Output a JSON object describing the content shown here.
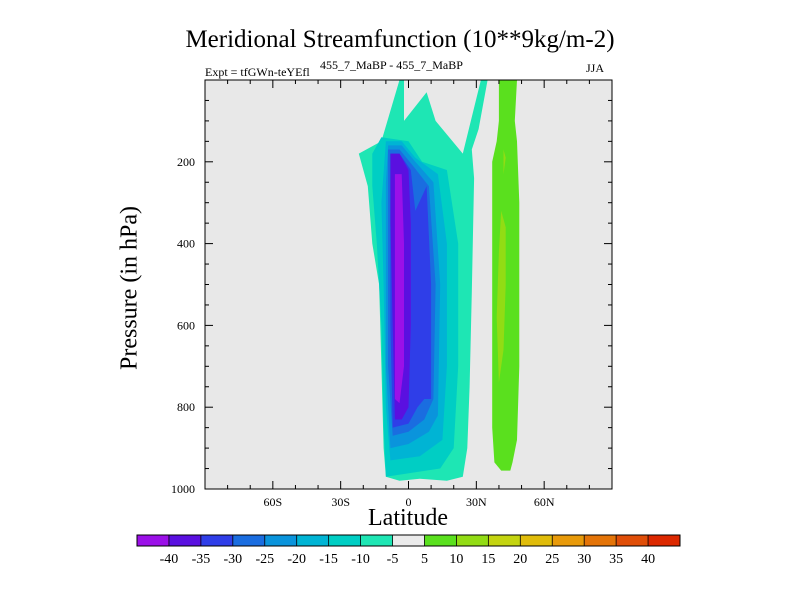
{
  "chart_data": {
    "type": "contour",
    "title": "Meridional Streamfunction (10**9kg/m-2)",
    "subtitle_left": "Expt = tfGWn-teYEfl",
    "subtitle_center": "455_7_MaBP - 455_7_MaBP",
    "subtitle_right": "JJA",
    "xlabel": "Latitude",
    "ylabel": "Pressure (in hPa)",
    "x_range": [
      -90,
      90
    ],
    "y_range": [
      1000,
      0
    ],
    "x_ticks": [
      {
        "value": -60,
        "label": "60S"
      },
      {
        "value": -30,
        "label": "30S"
      },
      {
        "value": 0,
        "label": "0"
      },
      {
        "value": 30,
        "label": "30N"
      },
      {
        "value": 60,
        "label": "60N"
      }
    ],
    "y_ticks": [
      {
        "value": 200,
        "label": "200"
      },
      {
        "value": 400,
        "label": "400"
      },
      {
        "value": 600,
        "label": "600"
      },
      {
        "value": 800,
        "label": "800"
      },
      {
        "value": 1000,
        "label": "1000"
      }
    ],
    "background_color": "#e8e8e8",
    "colorbar": {
      "labels": [
        "-40",
        "-35",
        "-30",
        "-25",
        "-20",
        "-15",
        "-10",
        "-5",
        "5",
        "10",
        "15",
        "20",
        "25",
        "30",
        "35",
        "40"
      ],
      "colors": [
        "#9b10e8",
        "#5a10e0",
        "#2f3ee8",
        "#1a6de0",
        "#0a94dc",
        "#00b4d4",
        "#00cec4",
        "#1ee6b4",
        "#ebebeb",
        "#5ae01e",
        "#92dc14",
        "#c4d410",
        "#e0bc0a",
        "#e89a0a",
        "#e47408",
        "#e04e08",
        "#dc2800"
      ]
    },
    "regions": [
      {
        "name": "lobe-minus-5",
        "level": -5,
        "color": "#1ee6b4",
        "points": [
          [
            -4,
            0
          ],
          [
            -2,
            0
          ],
          [
            -2,
            100
          ],
          [
            8,
            30
          ],
          [
            12,
            100
          ],
          [
            24,
            180
          ],
          [
            32,
            0
          ],
          [
            35,
            0
          ],
          [
            31,
            120
          ],
          [
            28,
            170
          ],
          [
            29,
            240
          ],
          [
            28,
            520
          ],
          [
            27,
            750
          ],
          [
            26,
            900
          ],
          [
            24,
            970
          ],
          [
            17,
            980
          ],
          [
            5,
            975
          ],
          [
            -4,
            980
          ],
          [
            -10,
            970
          ],
          [
            -11,
            900
          ],
          [
            -12,
            700
          ],
          [
            -13,
            500
          ],
          [
            -16,
            400
          ],
          [
            -18,
            260
          ],
          [
            -22,
            180
          ],
          [
            -12,
            150
          ]
        ]
      },
      {
        "name": "lobe-minus-10",
        "level": -10,
        "color": "#00cec4",
        "points": [
          [
            -12,
            140
          ],
          [
            0,
            150
          ],
          [
            6,
            200
          ],
          [
            17,
            220
          ],
          [
            22,
            400
          ],
          [
            22,
            700
          ],
          [
            20,
            900
          ],
          [
            14,
            950
          ],
          [
            2,
            960
          ],
          [
            -10,
            970
          ],
          [
            -11,
            850
          ],
          [
            -12,
            600
          ],
          [
            -14,
            400
          ],
          [
            -16,
            260
          ],
          [
            -16,
            180
          ]
        ]
      },
      {
        "name": "lobe-minus-15",
        "level": -15,
        "color": "#00b4d4",
        "points": [
          [
            -10,
            150
          ],
          [
            -3,
            150
          ],
          [
            3,
            190
          ],
          [
            13,
            230
          ],
          [
            17,
            400
          ],
          [
            17,
            700
          ],
          [
            15,
            880
          ],
          [
            5,
            920
          ],
          [
            -8,
            930
          ],
          [
            -10,
            800
          ],
          [
            -11,
            500
          ],
          [
            -12,
            300
          ]
        ]
      },
      {
        "name": "lobe-minus-20",
        "level": -20,
        "color": "#0a94dc",
        "points": [
          [
            -9,
            160
          ],
          [
            -3,
            160
          ],
          [
            3,
            200
          ],
          [
            11,
            250
          ],
          [
            14,
            500
          ],
          [
            13,
            820
          ],
          [
            9,
            860
          ],
          [
            0,
            890
          ],
          [
            -8,
            900
          ],
          [
            -10,
            700
          ],
          [
            -10,
            400
          ],
          [
            -10,
            250
          ]
        ]
      },
      {
        "name": "lobe-minus-25",
        "level": -25,
        "color": "#1a6de0",
        "points": [
          [
            -9,
            170
          ],
          [
            -4,
            170
          ],
          [
            2,
            210
          ],
          [
            9,
            260
          ],
          [
            12,
            500
          ],
          [
            11,
            780
          ],
          [
            7,
            830
          ],
          [
            0,
            860
          ],
          [
            -7,
            870
          ],
          [
            -9,
            700
          ],
          [
            -9,
            400
          ],
          [
            -9,
            250
          ]
        ]
      },
      {
        "name": "lobe-minus-30",
        "level": -30,
        "color": "#2f3ee8",
        "points": [
          [
            -8,
            180
          ],
          [
            -4,
            180
          ],
          [
            1,
            220
          ],
          [
            3,
            320
          ],
          [
            8,
            260
          ],
          [
            10,
            500
          ],
          [
            10,
            780
          ],
          [
            7,
            780
          ],
          [
            4,
            800
          ],
          [
            0,
            840
          ],
          [
            -7,
            850
          ],
          [
            -8,
            600
          ],
          [
            -8,
            350
          ]
        ]
      },
      {
        "name": "lobe-minus-35",
        "level": -35,
        "color": "#5a10e0",
        "points": [
          [
            -8,
            180
          ],
          [
            -4,
            180
          ],
          [
            0,
            220
          ],
          [
            1,
            350
          ],
          [
            1,
            600
          ],
          [
            0,
            800
          ],
          [
            -3,
            830
          ],
          [
            -6,
            830
          ],
          [
            -7,
            600
          ],
          [
            -8,
            350
          ]
        ]
      },
      {
        "name": "lobe-minus-40",
        "level": -40,
        "color": "#9b10e8",
        "points": [
          [
            -6,
            230
          ],
          [
            -3,
            230
          ],
          [
            -2,
            400
          ],
          [
            -2,
            700
          ],
          [
            -4,
            790
          ],
          [
            -6,
            780
          ],
          [
            -6,
            500
          ]
        ]
      },
      {
        "name": "lobe-plus-5",
        "level": 5,
        "color": "#5ae01e",
        "points": [
          [
            40,
            0
          ],
          [
            48,
            0
          ],
          [
            47,
            100
          ],
          [
            48,
            150
          ],
          [
            49,
            300
          ],
          [
            49,
            500
          ],
          [
            49,
            700
          ],
          [
            48,
            880
          ],
          [
            46,
            935
          ],
          [
            45,
            955
          ],
          [
            41,
            955
          ],
          [
            38,
            935
          ],
          [
            37,
            850
          ],
          [
            37,
            600
          ],
          [
            37,
            400
          ],
          [
            37,
            200
          ],
          [
            39,
            150
          ],
          [
            40,
            100
          ]
        ]
      },
      {
        "name": "lobe-plus-10",
        "level": 10,
        "color": "#92dc14",
        "points": [
          [
            42,
            170
          ],
          [
            43,
            190
          ],
          [
            42,
            230
          ],
          [
            42,
            170
          ]
        ]
      },
      {
        "name": "lobe-plus-10-lower",
        "level": 10,
        "color": "#92dc14",
        "points": [
          [
            41,
            320
          ],
          [
            43,
            360
          ],
          [
            43,
            500
          ],
          [
            42,
            660
          ],
          [
            40,
            740
          ],
          [
            39,
            580
          ],
          [
            40,
            420
          ]
        ]
      }
    ]
  }
}
